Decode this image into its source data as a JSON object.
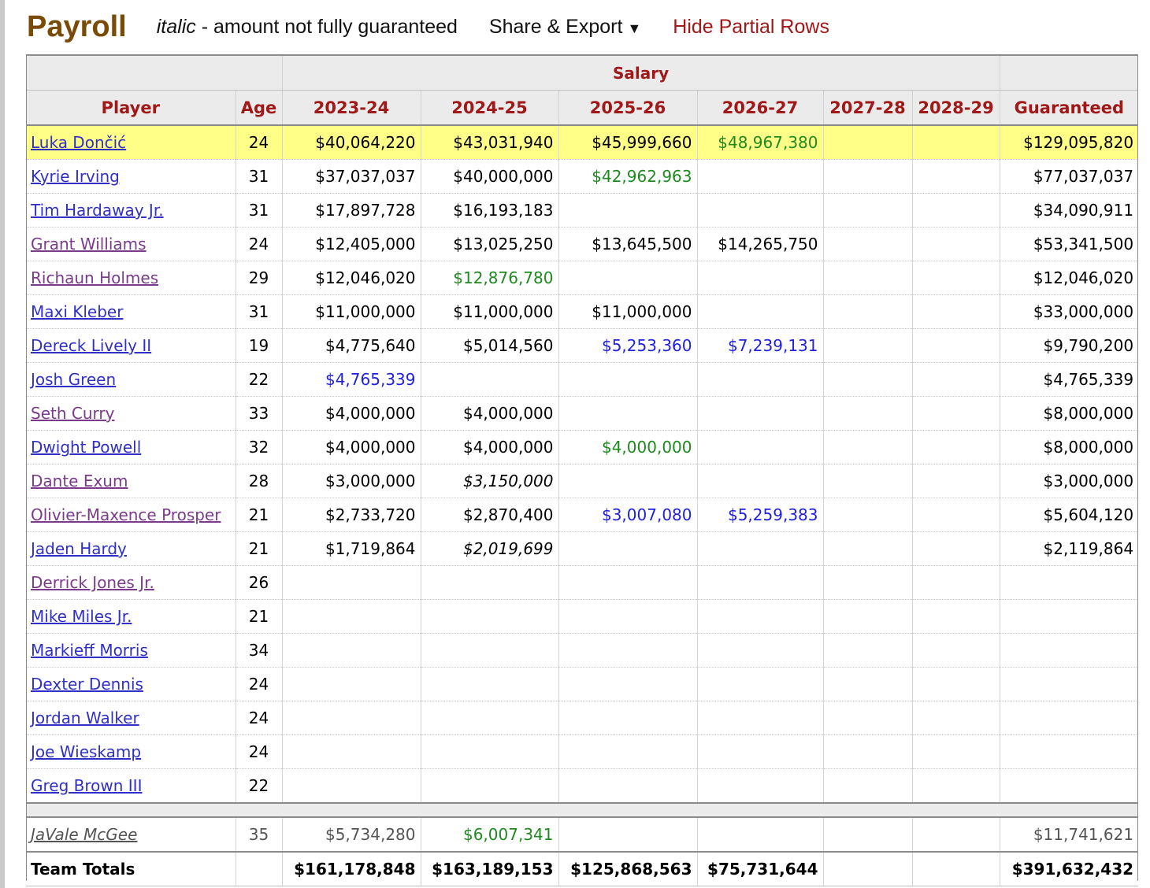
{
  "header": {
    "title": "Payroll",
    "note_italic": "italic",
    "note_rest": " - amount not fully guaranteed",
    "share_label": "Share & Export",
    "share_arrow": "▼",
    "hide_label": "Hide Partial Rows"
  },
  "table": {
    "group_header": "Salary",
    "columns": [
      "Player",
      "Age",
      "2023-24",
      "2024-25",
      "2025-26",
      "2026-27",
      "2027-28",
      "2028-29",
      "Guaranteed"
    ],
    "rows": [
      {
        "player": "Luka Dončić",
        "age": "24",
        "y1": "$40,064,220",
        "y2": "$43,031,940",
        "y3": "$45,999,660",
        "y4": "$48,967,380",
        "y5": "",
        "y6": "",
        "guaranteed": "$129,095,820"
      },
      {
        "player": "Kyrie Irving",
        "age": "31",
        "y1": "$37,037,037",
        "y2": "$40,000,000",
        "y3": "$42,962,963",
        "y4": "",
        "y5": "",
        "y6": "",
        "guaranteed": "$77,037,037"
      },
      {
        "player": "Tim Hardaway Jr.",
        "age": "31",
        "y1": "$17,897,728",
        "y2": "$16,193,183",
        "y3": "",
        "y4": "",
        "y5": "",
        "y6": "",
        "guaranteed": "$34,090,911"
      },
      {
        "player": "Grant Williams",
        "age": "24",
        "y1": "$12,405,000",
        "y2": "$13,025,250",
        "y3": "$13,645,500",
        "y4": "$14,265,750",
        "y5": "",
        "y6": "",
        "guaranteed": "$53,341,500"
      },
      {
        "player": "Richaun Holmes",
        "age": "29",
        "y1": "$12,046,020",
        "y2": "$12,876,780",
        "y3": "",
        "y4": "",
        "y5": "",
        "y6": "",
        "guaranteed": "$12,046,020"
      },
      {
        "player": "Maxi Kleber",
        "age": "31",
        "y1": "$11,000,000",
        "y2": "$11,000,000",
        "y3": "$11,000,000",
        "y4": "",
        "y5": "",
        "y6": "",
        "guaranteed": "$33,000,000"
      },
      {
        "player": "Dereck Lively II",
        "age": "19",
        "y1": "$4,775,640",
        "y2": "$5,014,560",
        "y3": "$5,253,360",
        "y4": "$7,239,131",
        "y5": "",
        "y6": "",
        "guaranteed": "$9,790,200"
      },
      {
        "player": "Josh Green",
        "age": "22",
        "y1": "$4,765,339",
        "y2": "",
        "y3": "",
        "y4": "",
        "y5": "",
        "y6": "",
        "guaranteed": "$4,765,339"
      },
      {
        "player": "Seth Curry",
        "age": "33",
        "y1": "$4,000,000",
        "y2": "$4,000,000",
        "y3": "",
        "y4": "",
        "y5": "",
        "y6": "",
        "guaranteed": "$8,000,000"
      },
      {
        "player": "Dwight Powell",
        "age": "32",
        "y1": "$4,000,000",
        "y2": "$4,000,000",
        "y3": "$4,000,000",
        "y4": "",
        "y5": "",
        "y6": "",
        "guaranteed": "$8,000,000"
      },
      {
        "player": "Dante Exum",
        "age": "28",
        "y1": "$3,000,000",
        "y2": "$3,150,000",
        "y3": "",
        "y4": "",
        "y5": "",
        "y6": "",
        "guaranteed": "$3,000,000"
      },
      {
        "player": "Olivier-Maxence Prosper",
        "age": "21",
        "y1": "$2,733,720",
        "y2": "$2,870,400",
        "y3": "$3,007,080",
        "y4": "$5,259,383",
        "y5": "",
        "y6": "",
        "guaranteed": "$5,604,120"
      },
      {
        "player": "Jaden Hardy",
        "age": "21",
        "y1": "$1,719,864",
        "y2": "$2,019,699",
        "y3": "",
        "y4": "",
        "y5": "",
        "y6": "",
        "guaranteed": "$2,119,864"
      },
      {
        "player": "Derrick Jones Jr.",
        "age": "26",
        "y1": "",
        "y2": "",
        "y3": "",
        "y4": "",
        "y5": "",
        "y6": "",
        "guaranteed": ""
      },
      {
        "player": "Mike Miles Jr.",
        "age": "21",
        "y1": "",
        "y2": "",
        "y3": "",
        "y4": "",
        "y5": "",
        "y6": "",
        "guaranteed": ""
      },
      {
        "player": "Markieff Morris",
        "age": "34",
        "y1": "",
        "y2": "",
        "y3": "",
        "y4": "",
        "y5": "",
        "y6": "",
        "guaranteed": ""
      },
      {
        "player": "Dexter Dennis",
        "age": "24",
        "y1": "",
        "y2": "",
        "y3": "",
        "y4": "",
        "y5": "",
        "y6": "",
        "guaranteed": ""
      },
      {
        "player": "Jordan Walker",
        "age": "24",
        "y1": "",
        "y2": "",
        "y3": "",
        "y4": "",
        "y5": "",
        "y6": "",
        "guaranteed": ""
      },
      {
        "player": "Joe Wieskamp",
        "age": "24",
        "y1": "",
        "y2": "",
        "y3": "",
        "y4": "",
        "y5": "",
        "y6": "",
        "guaranteed": ""
      },
      {
        "player": "Greg Brown III",
        "age": "22",
        "y1": "",
        "y2": "",
        "y3": "",
        "y4": "",
        "y5": "",
        "y6": "",
        "guaranteed": ""
      }
    ],
    "dead_row": {
      "player": "JaVale McGee",
      "age": "35",
      "y1": "$5,734,280",
      "y2": "$6,007,341",
      "guaranteed": "$11,741,621"
    },
    "totals": {
      "label": "Team Totals",
      "y1": "$161,178,848",
      "y2": "$163,189,153",
      "y3": "$125,868,563",
      "y4": "$75,731,644",
      "guaranteed": "$391,632,432"
    }
  },
  "colors": {
    "title": "#7a4b06",
    "header_text": "#a01818",
    "highlight_row": "#ffff88",
    "player_option_green": "#1e8a1e",
    "team_option_blue": "#2020e0",
    "link_blue": "#3030c8",
    "link_visited": "#7a3b8a"
  }
}
